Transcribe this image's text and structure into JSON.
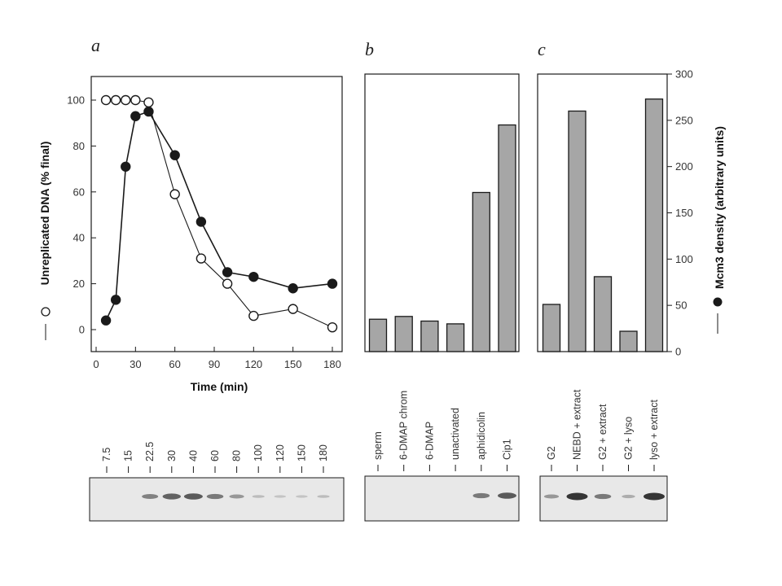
{
  "chart_data": [
    {
      "panel": "a",
      "type": "line",
      "xlabel": "Time (min)",
      "ylabel": "Unreplicated DNA (% final)",
      "xlim": [
        0,
        180
      ],
      "ylim": [
        -10,
        110
      ],
      "xticks": [
        0,
        30,
        60,
        90,
        120,
        150,
        180
      ],
      "yticks": [
        0,
        20,
        40,
        60,
        80,
        100
      ],
      "series": [
        {
          "marker": "open",
          "x": [
            7.5,
            15,
            22.5,
            30,
            40,
            60,
            80,
            100,
            120,
            150,
            180
          ],
          "y": [
            100,
            100,
            100,
            100,
            99,
            59,
            31,
            20,
            6,
            9,
            1
          ]
        },
        {
          "marker": "filled",
          "x": [
            7.5,
            15,
            22.5,
            30,
            40,
            60,
            80,
            100,
            120,
            150,
            180
          ],
          "y": [
            4,
            13,
            71,
            93,
            95,
            76,
            47,
            25,
            23,
            18,
            20
          ]
        }
      ],
      "blot_lanes": [
        "7.5",
        "15",
        "22.5",
        "30",
        "40",
        "60",
        "80",
        "100",
        "120",
        "150",
        "180"
      ],
      "blot_intensity": [
        0,
        0,
        0.5,
        0.7,
        0.75,
        0.55,
        0.35,
        0.1,
        0.05,
        0.05,
        0.1
      ]
    },
    {
      "panel": "b",
      "type": "bar",
      "categories": [
        "sperm",
        "6-DMAP chrom",
        "6-DMAP",
        "unactivated",
        "aphidicolin",
        "Cip1"
      ],
      "values": [
        35,
        38,
        33,
        30,
        172,
        245
      ],
      "ylim": [
        0,
        300
      ],
      "blot_intensity": [
        0,
        0,
        0,
        0,
        0.55,
        0.75
      ]
    },
    {
      "panel": "c",
      "type": "bar",
      "categories": [
        "G2",
        "NEBD + extract",
        "G2 + extract",
        "G2 + lyso",
        "lyso + extract"
      ],
      "values": [
        51,
        260,
        81,
        22,
        273
      ],
      "ylim": [
        0,
        300
      ],
      "yticks": [
        0,
        50,
        100,
        150,
        200,
        250,
        300
      ],
      "ylabel": "Mcm3 density (arbitrary units)",
      "blot_intensity": [
        0.35,
        1.0,
        0.55,
        0.2,
        1.0
      ]
    }
  ],
  "colors": {
    "bar_fill": "#a6a6a6",
    "ink": "#1a1a1a",
    "blot_bg": "#e8e8e8",
    "band": "#2b2b2b"
  }
}
